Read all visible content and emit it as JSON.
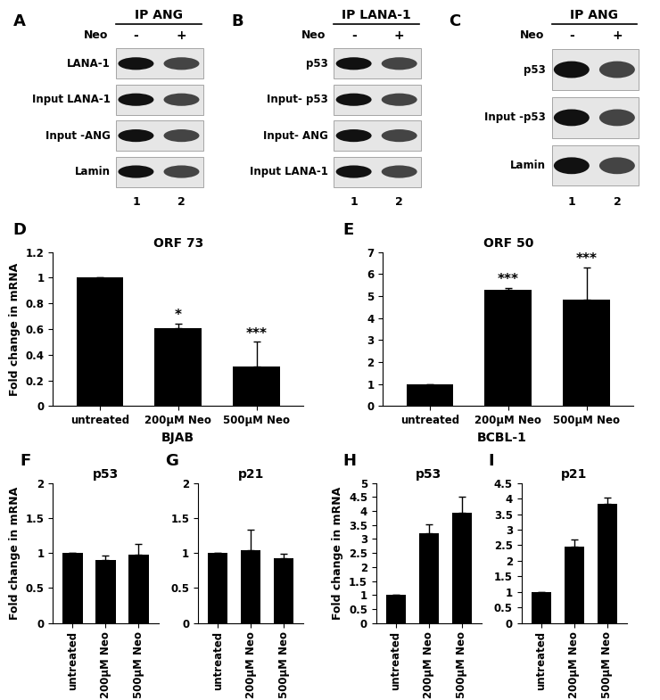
{
  "blots": [
    {
      "panel": "A",
      "header": "IP ANG",
      "treatment": "Neo",
      "lanes": [
        "-",
        "+"
      ],
      "lane_numbers": [
        "1",
        "2"
      ],
      "rows": [
        "LANA-1",
        "Input LANA-1",
        "Input -ANG",
        "Lamin"
      ]
    },
    {
      "panel": "B",
      "header": "IP LANA-1",
      "treatment": "Neo",
      "lanes": [
        "-",
        "+"
      ],
      "lane_numbers": [
        "1",
        "2"
      ],
      "rows": [
        "p53",
        "Input- p53",
        "Input- ANG",
        "Input LANA-1"
      ]
    },
    {
      "panel": "C",
      "header": "IP ANG",
      "treatment": "Neo",
      "lanes": [
        "-",
        "+"
      ],
      "lane_numbers": [
        "1",
        "2"
      ],
      "rows": [
        "p53",
        "Input -p53",
        "Lamin"
      ]
    }
  ],
  "groups": [
    {
      "label": "BJAB",
      "panels": [
        "F",
        "G"
      ]
    },
    {
      "label": "BCBL-1",
      "panels": [
        "H",
        "I"
      ]
    }
  ],
  "chart_data": [
    {
      "type": "bar",
      "panel": "D",
      "title": "ORF 73",
      "y_label": "Fold change in mRNA",
      "categories": [
        "untreated",
        "200µM Neo",
        "500µM Neo"
      ],
      "values": [
        1.0,
        0.61,
        0.31
      ],
      "errors": [
        0,
        0.03,
        0.19
      ],
      "significance": [
        null,
        "*",
        "***"
      ],
      "color": "#000000",
      "ylim": [
        0,
        1.2
      ],
      "yticks": [
        0,
        0.2,
        0.4,
        0.6,
        0.8,
        1,
        1.2
      ]
    },
    {
      "type": "bar",
      "panel": "E",
      "title": "ORF 50",
      "categories": [
        "untreated",
        "200µM Neo",
        "500µM Neo"
      ],
      "values": [
        1.0,
        5.3,
        4.85
      ],
      "errors": [
        0,
        0.08,
        1.45
      ],
      "significance": [
        null,
        "***",
        "***"
      ],
      "color": "#000000",
      "ylim": [
        0,
        7
      ],
      "yticks": [
        0,
        1,
        2,
        3,
        4,
        5,
        6,
        7
      ]
    },
    {
      "type": "bar",
      "panel": "F",
      "title": "p53",
      "y_label": "Fold change in mRNA",
      "categories": [
        "untreated",
        "200µM Neo",
        "500µM Neo"
      ],
      "values": [
        1.0,
        0.9,
        0.98
      ],
      "errors": [
        0,
        0.06,
        0.15
      ],
      "color": "#000000",
      "ylim": [
        0,
        2
      ],
      "yticks": [
        0,
        0.5,
        1,
        1.5,
        2
      ]
    },
    {
      "type": "bar",
      "panel": "G",
      "title": "p21",
      "categories": [
        "untreated",
        "200µM Neo",
        "500µM Neo"
      ],
      "values": [
        1.0,
        1.04,
        0.92
      ],
      "errors": [
        0,
        0.29,
        0.07
      ],
      "color": "#000000",
      "ylim": [
        0,
        2
      ],
      "yticks": [
        0,
        0.5,
        1,
        1.5,
        2
      ]
    },
    {
      "type": "bar",
      "panel": "H",
      "title": "p53",
      "y_label": "Fold change in mRNA",
      "categories": [
        "untreated",
        "200µM Neo",
        "500µM Neo"
      ],
      "values": [
        1.0,
        3.22,
        3.95
      ],
      "errors": [
        0,
        0.3,
        0.55
      ],
      "color": "#000000",
      "ylim": [
        0,
        5
      ],
      "yticks": [
        0,
        0.5,
        1,
        1.5,
        2,
        2.5,
        3,
        3.5,
        4,
        4.5,
        5
      ]
    },
    {
      "type": "bar",
      "panel": "I",
      "title": "p21",
      "categories": [
        "untreated",
        "200µM Neo",
        "500µM Neo"
      ],
      "values": [
        1.0,
        2.45,
        3.82
      ],
      "errors": [
        0,
        0.22,
        0.22
      ],
      "color": "#000000",
      "ylim": [
        0,
        4.5
      ],
      "yticks": [
        0,
        0.5,
        1,
        1.5,
        2,
        2.5,
        3,
        3.5,
        4,
        4.5
      ]
    }
  ]
}
